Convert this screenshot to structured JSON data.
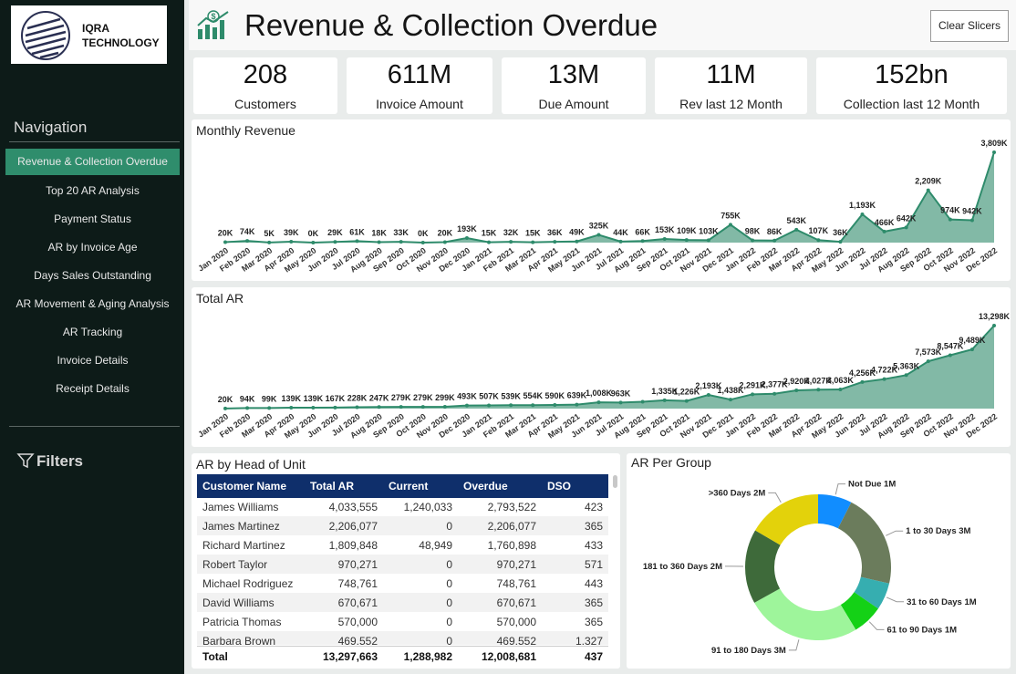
{
  "sidebar": {
    "logo_lines": [
      "IQRA",
      "TECHNOLOGY"
    ],
    "navigation_title": "Navigation",
    "nav_items": [
      "Revenue & Collection Overdue",
      "Top 20 AR Analysis",
      "Payment Status",
      "AR by Invoice Age",
      "Days Sales Outstanding",
      "AR Movement & Aging Analysis",
      "AR Tracking",
      "Invoice Details",
      "Receipt Details"
    ],
    "active_item": 0,
    "filters": "Filters"
  },
  "header": {
    "title": "Revenue & Collection Overdue",
    "button": "Clear Slicers"
  },
  "kpis": [
    {
      "value": "208",
      "label": "Customers"
    },
    {
      "value": "611M",
      "label": "Invoice Amount"
    },
    {
      "value": "13M",
      "label": "Due Amount"
    },
    {
      "value": "11M",
      "label": "Rev last 12 Month"
    },
    {
      "value": "152bn",
      "label": "Collection last 12 Month"
    }
  ],
  "chart_data": [
    {
      "type": "area",
      "title": "Monthly Revenue",
      "color": "#2e8b6b",
      "categories": [
        "Jan 2020",
        "Feb 2020",
        "Mar 2020",
        "Apr 2020",
        "May 2020",
        "Jun 2020",
        "Jul 2020",
        "Aug 2020",
        "Sep 2020",
        "Oct 2020",
        "Nov 2020",
        "Dec 2020",
        "Jan 2021",
        "Feb 2021",
        "Mar 2021",
        "Apr 2021",
        "May 2021",
        "Jun 2021",
        "Jul 2021",
        "Aug 2021",
        "Sep 2021",
        "Oct 2021",
        "Nov 2021",
        "Dec 2021",
        "Jan 2022",
        "Feb 2022",
        "Mar 2022",
        "Apr 2022",
        "May 2022",
        "Jun 2022",
        "Jul 2022",
        "Aug 2022",
        "Sep 2022",
        "Oct 2022",
        "Nov 2022",
        "Dec 2022"
      ],
      "values": [
        20,
        74,
        5,
        39,
        0,
        29,
        61,
        18,
        33,
        0,
        20,
        193,
        15,
        32,
        15,
        36,
        49,
        325,
        44,
        66,
        153,
        109,
        103,
        755,
        98,
        86,
        543,
        107,
        36,
        1193,
        466,
        642,
        2209,
        974,
        942,
        3809
      ],
      "value_labels": [
        "20K",
        "74K",
        "5K",
        "39K",
        "0K",
        "29K",
        "61K",
        "18K",
        "33K",
        "0K",
        "20K",
        "193K",
        "15K",
        "32K",
        "15K",
        "36K",
        "49K",
        "325K",
        "44K",
        "66K",
        "153K",
        "109K",
        "103K",
        "755K",
        "98K",
        "86K",
        "543K",
        "107K",
        "36K",
        "1,193K",
        "466K",
        "642K",
        "2,209K",
        "974K",
        "942K",
        "3,809K"
      ]
    },
    {
      "type": "area",
      "title": "Total AR",
      "color": "#2e8b6b",
      "categories": [
        "Jan 2020",
        "Feb 2020",
        "Mar 2020",
        "Apr 2020",
        "May 2020",
        "Jun 2020",
        "Jul 2020",
        "Aug 2020",
        "Sep 2020",
        "Oct 2020",
        "Nov 2020",
        "Dec 2020",
        "Jan 2021",
        "Feb 2021",
        "Mar 2021",
        "Apr 2021",
        "May 2021",
        "Jun 2021",
        "Jul 2021",
        "Aug 2021",
        "Sep 2021",
        "Oct 2021",
        "Nov 2021",
        "Dec 2021",
        "Jan 2022",
        "Feb 2022",
        "Mar 2022",
        "Apr 2022",
        "May 2022",
        "Jun 2022",
        "Jul 2022",
        "Aug 2022",
        "Sep 2022",
        "Oct 2022",
        "Nov 2022",
        "Dec 2022"
      ],
      "values": [
        20,
        94,
        99,
        139,
        139,
        167,
        228,
        247,
        279,
        279,
        299,
        493,
        507,
        539,
        554,
        590,
        639,
        1008,
        963,
        1100,
        1335,
        1226,
        2193,
        1438,
        2291,
        2377,
        2920,
        3027,
        3063,
        4256,
        4722,
        5363,
        7573,
        8547,
        9489,
        13298
      ],
      "value_labels": [
        "20K",
        "94K",
        "99K",
        "139K",
        "139K",
        "167K",
        "228K",
        "247K",
        "279K",
        "279K",
        "299K",
        "493K",
        "507K",
        "539K",
        "554K",
        "590K",
        "639K",
        "1,008K",
        "963K",
        null,
        "1,335K",
        "1,226K",
        "2,193K",
        "1,438K",
        "2,291K",
        "2,377K",
        "2,920K",
        "3,027K",
        "3,063K",
        "4,256K",
        "4,722K",
        "5,363K",
        "7,573K",
        "8,547K",
        "9,489K",
        "13,298K"
      ]
    },
    {
      "type": "donut",
      "title": "AR Per Group",
      "categories": [
        "Not Due",
        "1 to 30 Days",
        "31 to 60 Days",
        "61 to 90 Days",
        "91 to 180 Days",
        "181 to 360 Days",
        ">360 Days"
      ],
      "values": [
        1.0,
        2.8,
        0.8,
        0.9,
        3.4,
        2.2,
        2.2
      ],
      "value_labels": [
        "1M",
        "3M",
        "1M",
        "1M",
        "3M",
        "2M",
        "2M"
      ],
      "colors": [
        "#118dff",
        "#6b7c5c",
        "#36aeb0",
        "#14d116",
        "#9ef59b",
        "#3e6a3a",
        "#e3d20b"
      ]
    }
  ],
  "table": {
    "title": "AR by Head of Unit",
    "columns": [
      "Customer Name",
      "Total AR",
      "Current",
      "Overdue",
      "DSO"
    ],
    "rows": [
      [
        "James Williams",
        "4,033,555",
        "1,240,033",
        "2,793,522",
        "423"
      ],
      [
        "James Martinez",
        "2,206,077",
        "0",
        "2,206,077",
        "365"
      ],
      [
        "Richard Martinez",
        "1,809,848",
        "48,949",
        "1,760,898",
        "433"
      ],
      [
        "Robert Taylor",
        "970,271",
        "0",
        "970,271",
        "571"
      ],
      [
        "Michael Rodriguez",
        "748,761",
        "0",
        "748,761",
        "443"
      ],
      [
        "David Williams",
        "670,671",
        "0",
        "670,671",
        "365"
      ],
      [
        "Patricia Thomas",
        "570,000",
        "0",
        "570,000",
        "365"
      ],
      [
        "Barbara Brown",
        "469,552",
        "0",
        "469,552",
        "1,327"
      ]
    ],
    "total": [
      "Total",
      "13,297,663",
      "1,288,982",
      "12,008,681",
      "437"
    ]
  }
}
